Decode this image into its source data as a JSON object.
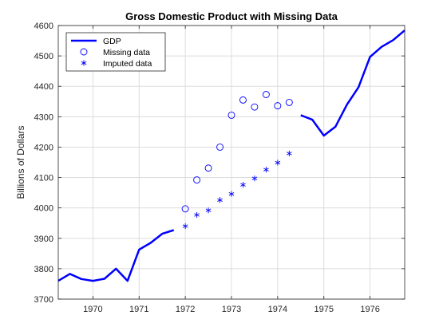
{
  "chart_data": {
    "type": "line",
    "title": "Gross Domestic Product with Missing Data",
    "xlabel": "",
    "ylabel": "Billions of Dollars",
    "xlim": [
      1969.25,
      1976.75
    ],
    "ylim": [
      3700,
      4600
    ],
    "xticks": [
      1970,
      1971,
      1972,
      1973,
      1974,
      1975,
      1976
    ],
    "yticks": [
      3700,
      3800,
      3900,
      4000,
      4100,
      4200,
      4300,
      4400,
      4500,
      4600
    ],
    "grid": true,
    "legend_position": "top-left",
    "colors": {
      "series": "#0000ff",
      "grid": "#dcdcdc",
      "axis": "#262626"
    },
    "series": [
      {
        "name": "GDP",
        "style": "line",
        "segments": [
          [
            [
              1969.25,
              3760
            ],
            [
              1969.5,
              3783
            ],
            [
              1969.75,
              3766
            ],
            [
              1970.0,
              3760
            ],
            [
              1970.25,
              3767
            ],
            [
              1970.5,
              3800
            ],
            [
              1970.75,
              3760
            ],
            [
              1971.0,
              3863
            ],
            [
              1971.25,
              3885
            ],
            [
              1971.5,
              3915
            ],
            [
              1971.75,
              3927
            ]
          ],
          [
            [
              1974.5,
              4305
            ],
            [
              1974.75,
              4290
            ],
            [
              1975.0,
              4238
            ],
            [
              1975.25,
              4267
            ],
            [
              1975.5,
              4340
            ],
            [
              1975.75,
              4397
            ],
            [
              1976.0,
              4497
            ],
            [
              1976.25,
              4530
            ],
            [
              1976.5,
              4552
            ],
            [
              1976.75,
              4584
            ]
          ]
        ]
      },
      {
        "name": "Missing data",
        "style": "circle",
        "points": [
          [
            1972.0,
            3997
          ],
          [
            1972.25,
            4092
          ],
          [
            1972.5,
            4131
          ],
          [
            1972.75,
            4200
          ],
          [
            1973.0,
            4305
          ],
          [
            1973.25,
            4355
          ],
          [
            1973.5,
            4332
          ],
          [
            1973.75,
            4373
          ],
          [
            1974.0,
            4336
          ],
          [
            1974.25,
            4347
          ]
        ]
      },
      {
        "name": "Imputed data",
        "style": "asterisk",
        "points": [
          [
            1972.0,
            3940
          ],
          [
            1972.25,
            3977
          ],
          [
            1972.5,
            3992
          ],
          [
            1972.75,
            4026
          ],
          [
            1973.0,
            4046
          ],
          [
            1973.25,
            4076
          ],
          [
            1973.5,
            4097
          ],
          [
            1973.75,
            4126
          ],
          [
            1974.0,
            4149
          ],
          [
            1974.25,
            4179
          ]
        ]
      }
    ]
  }
}
